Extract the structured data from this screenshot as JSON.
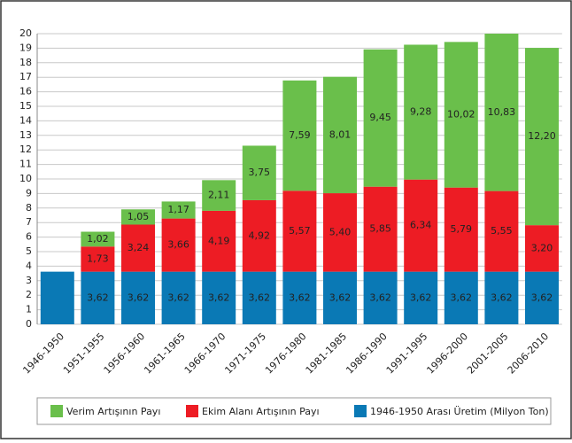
{
  "chart_data": {
    "type": "stacked_bar",
    "categories": [
      "1946-1950",
      "1951-1955",
      "1956-1960",
      "1961-1965",
      "1966-1970",
      "1971-1975",
      "1976-1980",
      "1981-1985",
      "1986-1990",
      "1991-1995",
      "1996-2000",
      "2001-2005",
      "2006-2010"
    ],
    "series": [
      {
        "name": "1946-1950 Arası Üretim (Milyon Ton)",
        "color": "#0a79b5",
        "values": [
          3.62,
          3.62,
          3.62,
          3.62,
          3.62,
          3.62,
          3.62,
          3.62,
          3.62,
          3.62,
          3.62,
          3.62,
          3.62
        ],
        "value_labels": [
          null,
          "3,62",
          "3,62",
          "3,62",
          "3,62",
          "3,62",
          "3,62",
          "3,62",
          "3,62",
          "3,62",
          "3,62",
          "3,62",
          "3,62"
        ]
      },
      {
        "name": "Ekim Alanı Artışının Payı",
        "color": "#ed1c24",
        "values": [
          null,
          1.73,
          3.24,
          3.66,
          4.19,
          4.92,
          5.57,
          5.4,
          5.85,
          6.34,
          5.79,
          5.55,
          3.2
        ],
        "value_labels": [
          null,
          "1,73",
          "3,24",
          "3,66",
          "4,19",
          "4,92",
          "5,57",
          "5,40",
          "5,85",
          "6,34",
          "5,79",
          "5,55",
          "3,20"
        ]
      },
      {
        "name": "Verim Artışının Payı",
        "color": "#6abf4b",
        "values": [
          null,
          1.02,
          1.05,
          1.17,
          2.11,
          3.75,
          7.59,
          8.01,
          9.45,
          9.28,
          10.02,
          10.83,
          12.2
        ],
        "value_labels": [
          null,
          "1,02",
          "1,05",
          "1,17",
          "2,11",
          "3,75",
          "7,59",
          "8,01",
          "9,45",
          "9,28",
          "10,02",
          "10,83",
          "12,20"
        ]
      }
    ],
    "ylim": [
      0,
      20
    ],
    "yticks": [
      0,
      1,
      2,
      3,
      4,
      5,
      6,
      7,
      8,
      9,
      10,
      11,
      12,
      13,
      14,
      15,
      16,
      17,
      18,
      19,
      20
    ],
    "grid": true
  }
}
